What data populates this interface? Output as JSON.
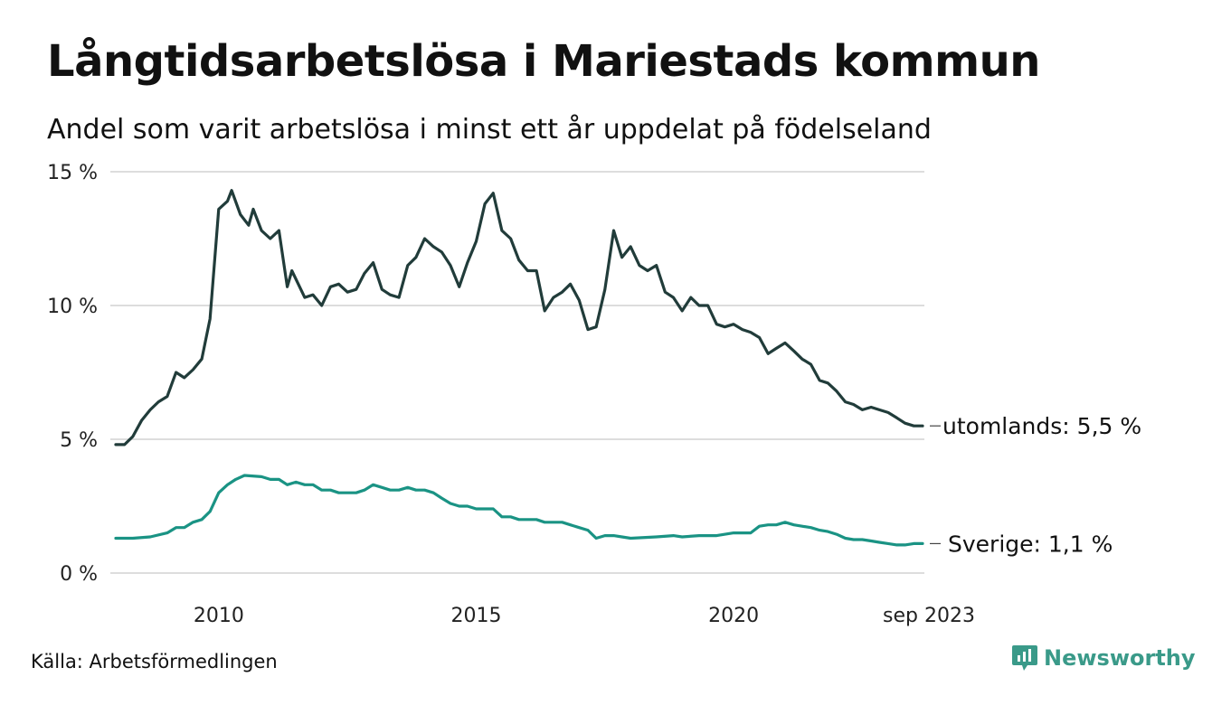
{
  "title": "Långtidsarbetslösa i Mariestads kommun",
  "subtitle": "Andel som varit arbetslösa i minst ett år uppdelat på födelseland",
  "source": "Källa: Arbetsförmedlingen",
  "brand": {
    "name": "Newsworthy",
    "color": "#3a9a89"
  },
  "chart_data": {
    "type": "line",
    "title": "Långtidsarbetslösa i Mariestads kommun",
    "xlabel": "",
    "ylabel": "",
    "ylim": [
      0,
      15
    ],
    "grid": true,
    "y_ticks": [
      {
        "value": 0,
        "label": "0 %"
      },
      {
        "value": 5,
        "label": "5 %"
      },
      {
        "value": 10,
        "label": "10 %"
      },
      {
        "value": 15,
        "label": "15 %"
      }
    ],
    "x_ticks": [
      {
        "value": 2010,
        "label": "2010"
      },
      {
        "value": 2015,
        "label": "2015"
      },
      {
        "value": 2020,
        "label": "2020"
      },
      {
        "value": 2023.67,
        "label": "sep 2023"
      }
    ],
    "xlim": [
      2008.0,
      2023.67
    ],
    "series": [
      {
        "name": "utomlands",
        "end_label": "utomlands: 5,5 %",
        "color": "#213c3a",
        "points": [
          [
            2008.0,
            4.8
          ],
          [
            2008.17,
            4.8
          ],
          [
            2008.33,
            5.1
          ],
          [
            2008.5,
            5.7
          ],
          [
            2008.67,
            6.1
          ],
          [
            2008.83,
            6.4
          ],
          [
            2009.0,
            6.6
          ],
          [
            2009.17,
            7.5
          ],
          [
            2009.33,
            7.3
          ],
          [
            2009.5,
            7.6
          ],
          [
            2009.67,
            8.0
          ],
          [
            2009.83,
            9.5
          ],
          [
            2010.0,
            13.6
          ],
          [
            2010.17,
            13.9
          ],
          [
            2010.25,
            14.3
          ],
          [
            2010.42,
            13.4
          ],
          [
            2010.58,
            13.0
          ],
          [
            2010.67,
            13.6
          ],
          [
            2010.83,
            12.8
          ],
          [
            2011.0,
            12.5
          ],
          [
            2011.17,
            12.8
          ],
          [
            2011.33,
            10.7
          ],
          [
            2011.42,
            11.3
          ],
          [
            2011.67,
            10.3
          ],
          [
            2011.83,
            10.4
          ],
          [
            2012.0,
            10.0
          ],
          [
            2012.17,
            10.7
          ],
          [
            2012.33,
            10.8
          ],
          [
            2012.5,
            10.5
          ],
          [
            2012.67,
            10.6
          ],
          [
            2012.83,
            11.2
          ],
          [
            2013.0,
            11.6
          ],
          [
            2013.17,
            10.6
          ],
          [
            2013.33,
            10.4
          ],
          [
            2013.5,
            10.3
          ],
          [
            2013.67,
            11.5
          ],
          [
            2013.83,
            11.8
          ],
          [
            2014.0,
            12.5
          ],
          [
            2014.17,
            12.2
          ],
          [
            2014.33,
            12.0
          ],
          [
            2014.5,
            11.5
          ],
          [
            2014.67,
            10.7
          ],
          [
            2014.83,
            11.6
          ],
          [
            2015.0,
            12.4
          ],
          [
            2015.17,
            13.8
          ],
          [
            2015.33,
            14.2
          ],
          [
            2015.5,
            12.8
          ],
          [
            2015.67,
            12.5
          ],
          [
            2015.83,
            11.7
          ],
          [
            2016.0,
            11.3
          ],
          [
            2016.17,
            11.3
          ],
          [
            2016.33,
            9.8
          ],
          [
            2016.5,
            10.3
          ],
          [
            2016.67,
            10.5
          ],
          [
            2016.83,
            10.8
          ],
          [
            2017.0,
            10.2
          ],
          [
            2017.17,
            9.1
          ],
          [
            2017.33,
            9.2
          ],
          [
            2017.5,
            10.6
          ],
          [
            2017.67,
            12.8
          ],
          [
            2017.83,
            11.8
          ],
          [
            2018.0,
            12.2
          ],
          [
            2018.17,
            11.5
          ],
          [
            2018.33,
            11.3
          ],
          [
            2018.5,
            11.5
          ],
          [
            2018.67,
            10.5
          ],
          [
            2018.83,
            10.3
          ],
          [
            2019.0,
            9.8
          ],
          [
            2019.17,
            10.3
          ],
          [
            2019.33,
            10.0
          ],
          [
            2019.5,
            10.0
          ],
          [
            2019.67,
            9.3
          ],
          [
            2019.83,
            9.2
          ],
          [
            2020.0,
            9.3
          ],
          [
            2020.17,
            9.1
          ],
          [
            2020.33,
            9.0
          ],
          [
            2020.5,
            8.8
          ],
          [
            2020.67,
            8.2
          ],
          [
            2020.83,
            8.4
          ],
          [
            2021.0,
            8.6
          ],
          [
            2021.17,
            8.3
          ],
          [
            2021.33,
            8.0
          ],
          [
            2021.5,
            7.8
          ],
          [
            2021.67,
            7.2
          ],
          [
            2021.83,
            7.1
          ],
          [
            2022.0,
            6.8
          ],
          [
            2022.17,
            6.4
          ],
          [
            2022.33,
            6.3
          ],
          [
            2022.5,
            6.1
          ],
          [
            2022.67,
            6.2
          ],
          [
            2022.83,
            6.1
          ],
          [
            2023.0,
            6.0
          ],
          [
            2023.17,
            5.8
          ],
          [
            2023.33,
            5.6
          ],
          [
            2023.5,
            5.5
          ],
          [
            2023.67,
            5.5
          ]
        ]
      },
      {
        "name": "Sverige",
        "end_label": "Sverige: 1,1 %",
        "color": "#1a9384",
        "points": [
          [
            2008.0,
            1.3
          ],
          [
            2008.33,
            1.3
          ],
          [
            2008.67,
            1.35
          ],
          [
            2009.0,
            1.5
          ],
          [
            2009.17,
            1.7
          ],
          [
            2009.33,
            1.7
          ],
          [
            2009.5,
            1.9
          ],
          [
            2009.67,
            2.0
          ],
          [
            2009.83,
            2.3
          ],
          [
            2010.0,
            3.0
          ],
          [
            2010.17,
            3.3
          ],
          [
            2010.33,
            3.5
          ],
          [
            2010.5,
            3.65
          ],
          [
            2010.83,
            3.6
          ],
          [
            2011.0,
            3.5
          ],
          [
            2011.17,
            3.5
          ],
          [
            2011.33,
            3.3
          ],
          [
            2011.5,
            3.4
          ],
          [
            2011.67,
            3.3
          ],
          [
            2011.83,
            3.3
          ],
          [
            2012.0,
            3.1
          ],
          [
            2012.17,
            3.1
          ],
          [
            2012.33,
            3.0
          ],
          [
            2012.67,
            3.0
          ],
          [
            2012.83,
            3.1
          ],
          [
            2013.0,
            3.3
          ],
          [
            2013.17,
            3.2
          ],
          [
            2013.33,
            3.1
          ],
          [
            2013.5,
            3.1
          ],
          [
            2013.67,
            3.2
          ],
          [
            2013.83,
            3.1
          ],
          [
            2014.0,
            3.1
          ],
          [
            2014.17,
            3.0
          ],
          [
            2014.33,
            2.8
          ],
          [
            2014.5,
            2.6
          ],
          [
            2014.67,
            2.5
          ],
          [
            2014.83,
            2.5
          ],
          [
            2015.0,
            2.4
          ],
          [
            2015.17,
            2.4
          ],
          [
            2015.33,
            2.4
          ],
          [
            2015.5,
            2.1
          ],
          [
            2015.67,
            2.1
          ],
          [
            2015.83,
            2.0
          ],
          [
            2016.0,
            2.0
          ],
          [
            2016.17,
            2.0
          ],
          [
            2016.33,
            1.9
          ],
          [
            2016.5,
            1.9
          ],
          [
            2016.67,
            1.9
          ],
          [
            2016.83,
            1.8
          ],
          [
            2017.0,
            1.7
          ],
          [
            2017.17,
            1.6
          ],
          [
            2017.33,
            1.3
          ],
          [
            2017.5,
            1.4
          ],
          [
            2017.67,
            1.4
          ],
          [
            2017.83,
            1.35
          ],
          [
            2018.0,
            1.3
          ],
          [
            2018.5,
            1.35
          ],
          [
            2018.83,
            1.4
          ],
          [
            2019.0,
            1.35
          ],
          [
            2019.33,
            1.4
          ],
          [
            2019.67,
            1.4
          ],
          [
            2020.0,
            1.5
          ],
          [
            2020.33,
            1.5
          ],
          [
            2020.5,
            1.75
          ],
          [
            2020.67,
            1.8
          ],
          [
            2020.83,
            1.8
          ],
          [
            2021.0,
            1.9
          ],
          [
            2021.17,
            1.8
          ],
          [
            2021.33,
            1.75
          ],
          [
            2021.5,
            1.7
          ],
          [
            2021.67,
            1.6
          ],
          [
            2021.83,
            1.55
          ],
          [
            2022.0,
            1.45
          ],
          [
            2022.17,
            1.3
          ],
          [
            2022.33,
            1.25
          ],
          [
            2022.5,
            1.25
          ],
          [
            2022.67,
            1.2
          ],
          [
            2022.83,
            1.15
          ],
          [
            2023.0,
            1.1
          ],
          [
            2023.17,
            1.05
          ],
          [
            2023.33,
            1.05
          ],
          [
            2023.5,
            1.1
          ],
          [
            2023.67,
            1.1
          ]
        ]
      }
    ]
  }
}
